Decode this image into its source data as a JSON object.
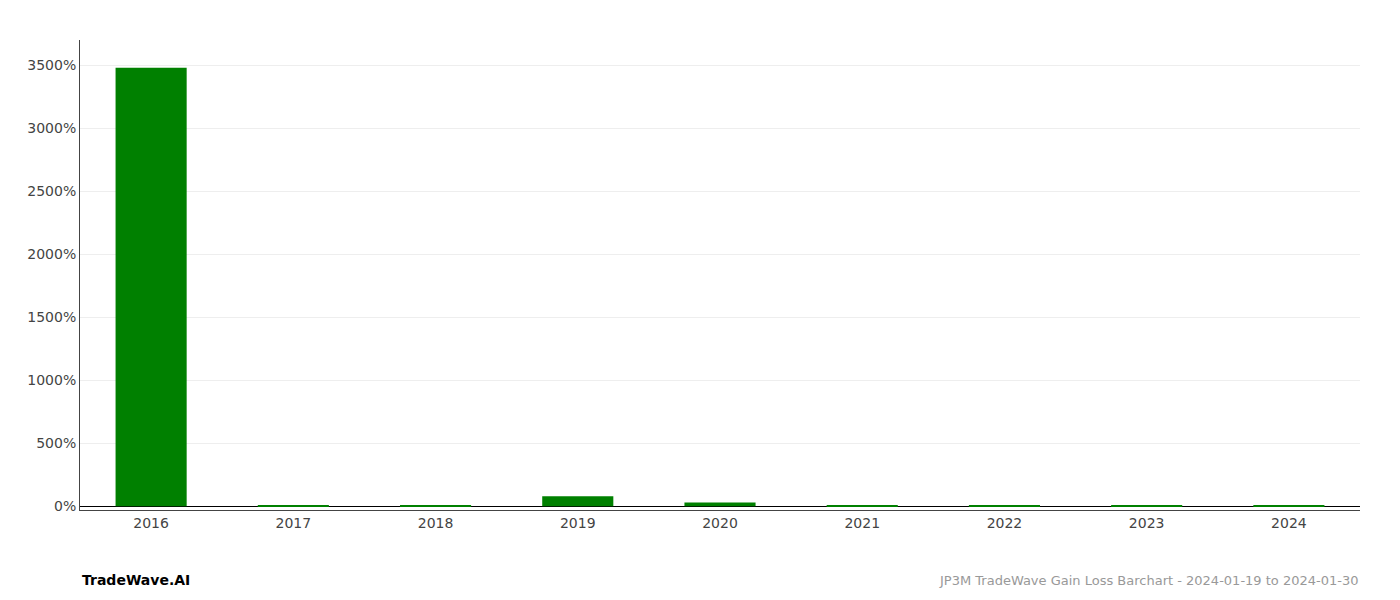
{
  "chart_data": {
    "type": "bar",
    "categories": [
      "2016",
      "2017",
      "2018",
      "2019",
      "2020",
      "2021",
      "2022",
      "2023",
      "2024"
    ],
    "values": [
      3480,
      8,
      2,
      80,
      30,
      5,
      3,
      10,
      4
    ],
    "colors": [
      "#008000",
      "#008000",
      "#008000",
      "#008000",
      "#008000",
      "#008000",
      "#008000",
      "#008000",
      "#008000"
    ],
    "ylim": [
      -30,
      3700
    ],
    "yticks": [
      {
        "value": 0,
        "label": "0%"
      },
      {
        "value": 500,
        "label": "500%"
      },
      {
        "value": 1000,
        "label": "1000%"
      },
      {
        "value": 1500,
        "label": "1500%"
      },
      {
        "value": 2000,
        "label": "2000%"
      },
      {
        "value": 2500,
        "label": "2500%"
      },
      {
        "value": 3000,
        "label": "3000%"
      },
      {
        "value": 3500,
        "label": "3500%"
      }
    ],
    "grid": true,
    "annotations": [
      "TradeWave.AI",
      "JP3M TradeWave Gain Loss Barchart - 2024-01-19 to 2024-01-30"
    ]
  }
}
